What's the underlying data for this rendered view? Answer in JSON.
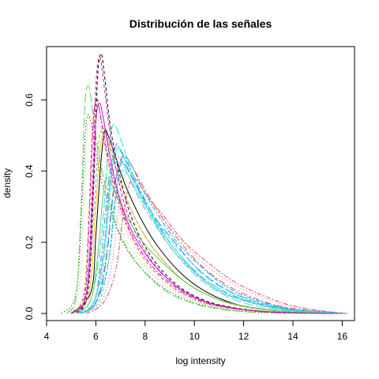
{
  "chart_data": {
    "type": "line",
    "title": "Distribución de las señales",
    "xlabel": "log intensity",
    "ylabel": "density",
    "xlim": [
      4.0,
      16.5
    ],
    "ylim": [
      -0.02,
      0.75
    ],
    "x_ticks": [
      4,
      6,
      8,
      10,
      12,
      14,
      16
    ],
    "x_tick_labels": [
      "4",
      "6",
      "8",
      "10",
      "12",
      "14",
      "16"
    ],
    "y_ticks": [
      0.0,
      0.2,
      0.4,
      0.6
    ],
    "y_tick_labels": [
      "0.0",
      "0.2",
      "0.4",
      "0.6"
    ],
    "grid": false,
    "legend": "none",
    "series": [
      {
        "color": "#000000",
        "dash": "solid",
        "x": [
          5.0,
          5.8,
          6.0,
          6.2,
          6.35,
          6.5,
          6.8,
          7.2,
          7.8,
          8.5,
          9.5,
          10.5,
          11.5,
          12.5,
          14.0,
          16.0
        ],
        "y": [
          0.0,
          0.06,
          0.22,
          0.42,
          0.51,
          0.5,
          0.44,
          0.36,
          0.27,
          0.19,
          0.11,
          0.06,
          0.03,
          0.015,
          0.004,
          0.0
        ]
      },
      {
        "color": "#df536b",
        "dash": "4,3",
        "x": [
          5.0,
          5.5,
          5.7,
          5.85,
          6.0,
          6.15,
          6.4,
          6.8,
          7.3,
          8.0,
          9.0,
          10.0,
          11.0,
          12.5,
          14.0,
          16.0
        ],
        "y": [
          0.0,
          0.05,
          0.25,
          0.5,
          0.6,
          0.57,
          0.46,
          0.34,
          0.24,
          0.15,
          0.08,
          0.04,
          0.02,
          0.008,
          0.002,
          0.0
        ]
      },
      {
        "color": "#61d04f",
        "dash": "1,3",
        "x": [
          4.8,
          5.3,
          5.5,
          5.65,
          5.8,
          6.0,
          6.3,
          6.7,
          7.2,
          8.0,
          9.0,
          10.0,
          11.0,
          12.5,
          14.0,
          16.0
        ],
        "y": [
          0.0,
          0.06,
          0.3,
          0.52,
          0.55,
          0.5,
          0.4,
          0.3,
          0.21,
          0.13,
          0.07,
          0.035,
          0.017,
          0.006,
          0.002,
          0.0
        ]
      },
      {
        "color": "#2297e6",
        "dash": "8,3,2,3",
        "x": [
          5.2,
          5.9,
          6.2,
          6.5,
          6.8,
          7.0,
          7.3,
          7.7,
          8.3,
          9.0,
          10.0,
          11.0,
          12.0,
          13.5,
          15.0,
          16.0
        ],
        "y": [
          0.0,
          0.03,
          0.15,
          0.36,
          0.47,
          0.46,
          0.42,
          0.36,
          0.28,
          0.2,
          0.12,
          0.07,
          0.04,
          0.015,
          0.004,
          0.0
        ]
      },
      {
        "color": "#28e2e5",
        "dash": "12,4",
        "x": [
          5.2,
          5.8,
          6.2,
          6.5,
          6.7,
          6.9,
          7.2,
          7.6,
          8.2,
          9.0,
          10.0,
          11.0,
          12.0,
          13.5,
          15.0,
          16.0
        ],
        "y": [
          0.0,
          0.04,
          0.2,
          0.45,
          0.53,
          0.51,
          0.45,
          0.37,
          0.28,
          0.19,
          0.11,
          0.06,
          0.03,
          0.01,
          0.003,
          0.0
        ]
      },
      {
        "color": "#cd0bbc",
        "dash": "6,2,2,2",
        "x": [
          5.0,
          5.55,
          5.75,
          5.9,
          6.05,
          6.2,
          6.5,
          6.9,
          7.4,
          8.2,
          9.2,
          10.2,
          11.2,
          12.5,
          14.0,
          16.0
        ],
        "y": [
          0.0,
          0.05,
          0.3,
          0.54,
          0.6,
          0.55,
          0.44,
          0.33,
          0.23,
          0.14,
          0.075,
          0.037,
          0.018,
          0.007,
          0.002,
          0.0
        ]
      },
      {
        "color": "#f5c710",
        "dash": "solid",
        "x": [
          5.0,
          5.7,
          5.95,
          6.15,
          6.3,
          6.5,
          6.8,
          7.2,
          7.8,
          8.6,
          9.6,
          10.6,
          11.6,
          13.0,
          14.5,
          16.0
        ],
        "y": [
          0.0,
          0.05,
          0.25,
          0.45,
          0.5,
          0.48,
          0.41,
          0.33,
          0.24,
          0.16,
          0.09,
          0.05,
          0.025,
          0.009,
          0.002,
          0.0
        ]
      },
      {
        "color": "#9e9e9e",
        "dash": "4,3",
        "x": [
          5.0,
          5.6,
          5.9,
          6.1,
          6.3,
          6.5,
          6.8,
          7.2,
          7.8,
          8.6,
          9.6,
          10.6,
          11.6,
          13.0,
          14.5,
          16.0
        ],
        "y": [
          0.0,
          0.05,
          0.26,
          0.47,
          0.52,
          0.49,
          0.41,
          0.33,
          0.24,
          0.16,
          0.09,
          0.05,
          0.025,
          0.009,
          0.002,
          0.0
        ]
      },
      {
        "color": "#000000",
        "dash": "1,3",
        "x": [
          4.6,
          5.2,
          5.45,
          5.6,
          5.75,
          5.95,
          6.2,
          6.6,
          7.1,
          7.8,
          8.8,
          9.8,
          10.8,
          12.0,
          13.5,
          15.5
        ],
        "y": [
          0.0,
          0.06,
          0.33,
          0.53,
          0.55,
          0.48,
          0.38,
          0.29,
          0.2,
          0.13,
          0.07,
          0.035,
          0.017,
          0.006,
          0.002,
          0.0
        ]
      },
      {
        "color": "#df536b",
        "dash": "8,3,2,3",
        "x": [
          5.4,
          6.0,
          6.4,
          6.7,
          7.0,
          7.2,
          7.5,
          7.9,
          8.5,
          9.2,
          10.2,
          11.2,
          12.2,
          13.5,
          15.0,
          16.2
        ],
        "y": [
          0.0,
          0.03,
          0.15,
          0.34,
          0.43,
          0.44,
          0.41,
          0.36,
          0.29,
          0.22,
          0.14,
          0.085,
          0.05,
          0.02,
          0.006,
          0.0
        ]
      },
      {
        "color": "#61d04f",
        "dash": "12,4",
        "x": [
          4.8,
          5.2,
          5.4,
          5.55,
          5.7,
          5.85,
          6.1,
          6.5,
          7.0,
          7.8,
          8.8,
          9.8,
          10.8,
          12.0,
          13.5,
          15.5
        ],
        "y": [
          0.0,
          0.05,
          0.3,
          0.58,
          0.64,
          0.58,
          0.45,
          0.33,
          0.22,
          0.13,
          0.065,
          0.032,
          0.015,
          0.005,
          0.001,
          0.0
        ]
      },
      {
        "color": "#2297e6",
        "dash": "6,2,2,2",
        "x": [
          5.4,
          6.0,
          6.5,
          6.8,
          7.0,
          7.2,
          7.5,
          7.9,
          8.5,
          9.3,
          10.3,
          11.3,
          12.3,
          13.6,
          15.0,
          16.2
        ],
        "y": [
          0.0,
          0.03,
          0.14,
          0.32,
          0.42,
          0.44,
          0.41,
          0.35,
          0.28,
          0.2,
          0.13,
          0.075,
          0.043,
          0.017,
          0.005,
          0.0
        ]
      },
      {
        "color": "#28e2e5",
        "dash": "solid",
        "x": [
          5.3,
          5.9,
          6.3,
          6.6,
          6.85,
          7.05,
          7.3,
          7.7,
          8.3,
          9.1,
          10.1,
          11.1,
          12.1,
          13.5,
          15.0,
          16.0
        ],
        "y": [
          0.0,
          0.03,
          0.16,
          0.38,
          0.46,
          0.45,
          0.41,
          0.35,
          0.27,
          0.19,
          0.11,
          0.06,
          0.035,
          0.013,
          0.004,
          0.0
        ]
      },
      {
        "color": "#cd0bbc",
        "dash": "4,3",
        "x": [
          5.0,
          5.6,
          5.85,
          6.0,
          6.15,
          6.3,
          6.55,
          6.9,
          7.4,
          8.2,
          9.2,
          10.2,
          11.2,
          12.5,
          14.0,
          16.0
        ],
        "y": [
          0.0,
          0.05,
          0.35,
          0.64,
          0.72,
          0.66,
          0.52,
          0.38,
          0.26,
          0.155,
          0.08,
          0.04,
          0.02,
          0.007,
          0.002,
          0.0
        ]
      },
      {
        "color": "#f5c710",
        "dash": "1,3",
        "x": [
          4.9,
          5.5,
          5.75,
          5.9,
          6.05,
          6.25,
          6.5,
          6.9,
          7.4,
          8.1,
          9.1,
          10.1,
          11.1,
          12.5,
          14.0,
          16.0
        ],
        "y": [
          0.0,
          0.06,
          0.3,
          0.52,
          0.55,
          0.5,
          0.4,
          0.3,
          0.21,
          0.13,
          0.07,
          0.035,
          0.017,
          0.006,
          0.002,
          0.0
        ]
      },
      {
        "color": "#9e9e9e",
        "dash": "8,3,2,3",
        "x": [
          5.2,
          5.9,
          6.3,
          6.55,
          6.8,
          7.0,
          7.3,
          7.7,
          8.3,
          9.1,
          10.1,
          11.1,
          12.1,
          13.5,
          15.0,
          16.0
        ],
        "y": [
          0.0,
          0.03,
          0.17,
          0.36,
          0.44,
          0.43,
          0.39,
          0.33,
          0.26,
          0.18,
          0.11,
          0.06,
          0.034,
          0.012,
          0.003,
          0.0
        ]
      },
      {
        "color": "#000000",
        "dash": "4,3",
        "x": [
          5.0,
          5.65,
          5.9,
          6.05,
          6.2,
          6.35,
          6.6,
          7.0,
          7.5,
          8.3,
          9.3,
          10.3,
          11.3,
          12.6,
          14.0,
          16.0
        ],
        "y": [
          0.0,
          0.05,
          0.34,
          0.64,
          0.73,
          0.67,
          0.52,
          0.38,
          0.26,
          0.155,
          0.08,
          0.04,
          0.02,
          0.007,
          0.002,
          0.0
        ]
      },
      {
        "color": "#df536b",
        "dash": "1,3",
        "x": [
          5.6,
          6.2,
          6.6,
          6.9,
          7.15,
          7.35,
          7.6,
          8.0,
          8.6,
          9.4,
          10.4,
          11.4,
          12.4,
          13.7,
          15.0,
          16.2
        ],
        "y": [
          0.0,
          0.03,
          0.12,
          0.28,
          0.38,
          0.4,
          0.38,
          0.34,
          0.28,
          0.21,
          0.14,
          0.09,
          0.055,
          0.023,
          0.008,
          0.0
        ]
      },
      {
        "color": "#61d04f",
        "dash": "solid",
        "x": [
          5.2,
          5.8,
          6.1,
          6.3,
          6.45,
          6.6,
          6.85,
          7.2,
          7.8,
          8.6,
          9.6,
          10.6,
          11.6,
          13.0,
          14.5,
          16.0
        ],
        "y": [
          0.0,
          0.04,
          0.18,
          0.34,
          0.38,
          0.37,
          0.33,
          0.28,
          0.21,
          0.15,
          0.09,
          0.05,
          0.027,
          0.01,
          0.003,
          0.0
        ]
      },
      {
        "color": "#2297e6",
        "dash": "12,4",
        "x": [
          5.4,
          6.0,
          6.4,
          6.7,
          6.95,
          7.15,
          7.4,
          7.8,
          8.4,
          9.2,
          10.2,
          11.2,
          12.2,
          13.6,
          15.0,
          16.2
        ],
        "y": [
          0.0,
          0.03,
          0.14,
          0.33,
          0.41,
          0.42,
          0.39,
          0.34,
          0.27,
          0.2,
          0.12,
          0.07,
          0.04,
          0.015,
          0.005,
          0.0
        ]
      },
      {
        "color": "#28e2e5",
        "dash": "6,2,2,2",
        "x": [
          5.3,
          5.95,
          6.35,
          6.6,
          6.85,
          7.05,
          7.3,
          7.7,
          8.3,
          9.1,
          10.1,
          11.1,
          12.1,
          13.5,
          15.0,
          16.0
        ],
        "y": [
          0.0,
          0.03,
          0.16,
          0.35,
          0.43,
          0.43,
          0.39,
          0.34,
          0.27,
          0.19,
          0.115,
          0.065,
          0.036,
          0.013,
          0.004,
          0.0
        ]
      },
      {
        "color": "#cd0bbc",
        "dash": "solid",
        "x": [
          5.0,
          5.6,
          5.85,
          6.0,
          6.15,
          6.3,
          6.55,
          6.9,
          7.4,
          8.2,
          9.2,
          10.2,
          11.2,
          12.5,
          14.0,
          16.0
        ],
        "y": [
          0.0,
          0.05,
          0.3,
          0.54,
          0.59,
          0.55,
          0.45,
          0.34,
          0.24,
          0.15,
          0.08,
          0.04,
          0.02,
          0.007,
          0.002,
          0.0
        ]
      },
      {
        "color": "#df536b",
        "dash": "6,2,2,2",
        "x": [
          5.6,
          6.3,
          6.8,
          7.1,
          7.35,
          7.55,
          7.8,
          8.2,
          8.8,
          9.6,
          10.6,
          11.6,
          12.6,
          13.8,
          15.0,
          16.2
        ],
        "y": [
          0.0,
          0.03,
          0.12,
          0.27,
          0.36,
          0.38,
          0.36,
          0.32,
          0.27,
          0.2,
          0.14,
          0.09,
          0.056,
          0.025,
          0.009,
          0.0
        ]
      },
      {
        "color": "#28e2e5",
        "dash": "4,3",
        "x": [
          5.4,
          6.1,
          6.5,
          6.75,
          7.0,
          7.2,
          7.45,
          7.85,
          8.45,
          9.25,
          10.25,
          11.25,
          12.25,
          13.6,
          15.0,
          16.2
        ],
        "y": [
          0.0,
          0.03,
          0.14,
          0.31,
          0.39,
          0.4,
          0.37,
          0.32,
          0.26,
          0.19,
          0.12,
          0.07,
          0.04,
          0.015,
          0.005,
          0.0
        ]
      }
    ]
  }
}
